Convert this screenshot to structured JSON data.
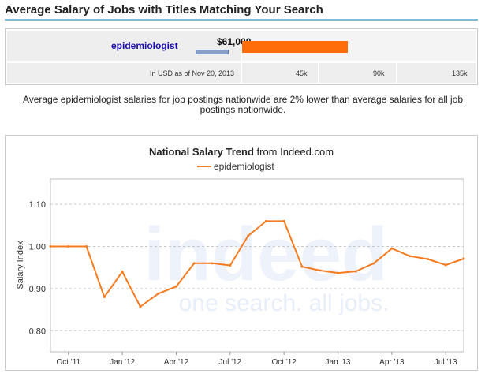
{
  "header": {
    "title": "Average Salary of Jobs with Titles Matching Your Search"
  },
  "salary_table": {
    "job_title": "epidemiologist",
    "amount": "$61,000",
    "as_of": "In USD as of Nov 20, 2013",
    "scale_ticks": [
      "45k",
      "90k",
      "135k"
    ],
    "bar_max": 135000,
    "bar_value": 61000
  },
  "description": "Average epidemiologist salaries for job postings nationwide are 2% lower than average salaries for all job postings nationwide.",
  "watermark": {
    "brand": "indeed",
    "tagline": "one search. all jobs."
  },
  "colors": {
    "line": "#f47b20",
    "bar": "#ff6d0a",
    "header_rule": "#7fbcd8"
  },
  "chart_data": {
    "type": "line",
    "title_bold": "National Salary Trend",
    "title_rest": " from Indeed.com",
    "ylabel": "Salary Index",
    "ylim": [
      0.75,
      1.16
    ],
    "yticks": [
      0.8,
      0.9,
      1.0,
      1.1
    ],
    "ytick_labels": [
      "0.80",
      "0.90",
      "1.00",
      "1.10"
    ],
    "xticks": [
      "Oct '11",
      "Jan '12",
      "Apr '12",
      "Jul '12",
      "Oct '12",
      "Jan '13",
      "Apr '13",
      "Jul '13"
    ],
    "x": [
      "2011-09",
      "2011-10",
      "2011-11",
      "2011-12",
      "2012-01",
      "2012-02",
      "2012-03",
      "2012-04",
      "2012-05",
      "2012-06",
      "2012-07",
      "2012-08",
      "2012-09",
      "2012-10",
      "2012-11",
      "2012-12",
      "2013-01",
      "2013-02",
      "2013-03",
      "2013-04",
      "2013-05",
      "2013-06",
      "2013-07",
      "2013-08"
    ],
    "series": [
      {
        "name": "epidemiologist",
        "values": [
          1.0,
          1.0,
          1.0,
          0.88,
          0.94,
          0.857,
          0.888,
          0.905,
          0.96,
          0.96,
          0.955,
          1.025,
          1.06,
          1.06,
          0.952,
          0.943,
          0.937,
          0.941,
          0.96,
          0.995,
          0.977,
          0.97,
          0.956,
          0.971
        ]
      }
    ],
    "legend_position": "top-center",
    "grid": true
  }
}
